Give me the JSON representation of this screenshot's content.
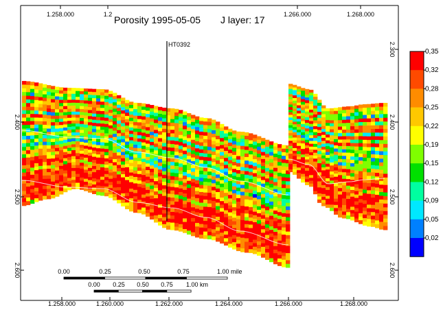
{
  "chart_data": {
    "type": "heatmap",
    "title": "Porosity 1995-05-05",
    "subtitle": "J layer: 17",
    "well_label": "HT0392",
    "x_ticks": [
      "1.258.000",
      "1.260.000",
      "1.262.000",
      "1.264.000",
      "1.266.000",
      "1.268.000"
    ],
    "x_ticks_top": [
      "1.258.000",
      "1.2",
      "1.266.000",
      "1.268.000"
    ],
    "y_ticks": [
      "2.300",
      "2.400",
      "2.500",
      "2.600"
    ],
    "y_ticks_left": [
      "2.400",
      "2.500",
      "2.600"
    ],
    "legend": {
      "labels": [
        "0,35",
        "0,32",
        "0,28",
        "0,25",
        "0,22",
        "0,19",
        "0,15",
        "0,12",
        "0,09",
        "0,05",
        "0,02"
      ],
      "colors": [
        "#ff0000",
        "#ff4a00",
        "#ff8c00",
        "#ffc800",
        "#ffff00",
        "#7fff00",
        "#00e000",
        "#00ffa0",
        "#00e8ff",
        "#0080ff",
        "#0000ff"
      ],
      "placement": "right"
    },
    "scale_bars": {
      "mile_labels": [
        "0.00",
        "0.25",
        "0.50",
        "0.75",
        "1.00 mile"
      ],
      "km_labels": [
        "0.00",
        "0.25",
        "0.50",
        "0.75",
        "1.00 km"
      ]
    }
  },
  "colors": {
    "background": "#ffffff",
    "axis": "#000000"
  }
}
